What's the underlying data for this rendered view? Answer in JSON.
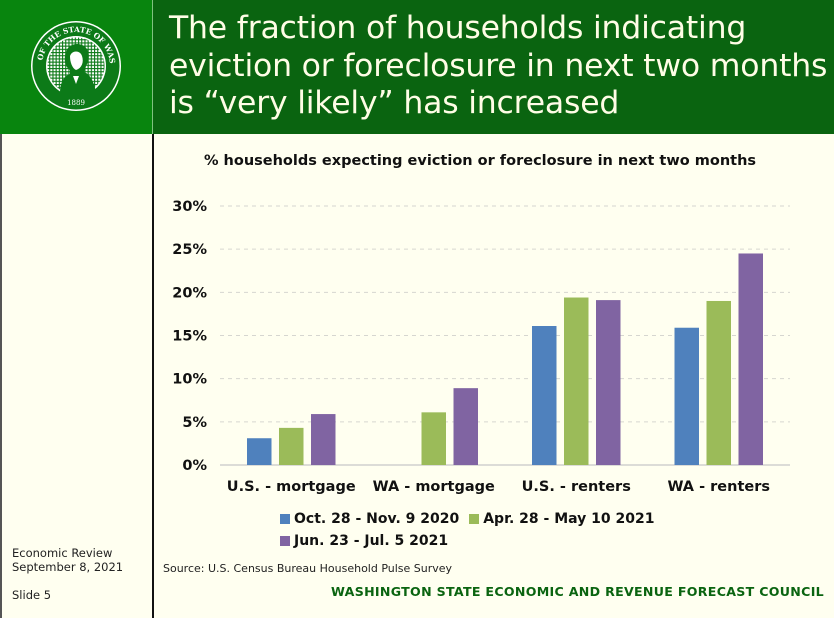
{
  "slide": {
    "title": "The fraction of households indicating eviction or foreclosure in next two months is “very likely” has increased",
    "seal": {
      "icon": "washington-state-seal-icon",
      "text_top": "THE SEAL OF THE STATE OF WASHINGTON",
      "year": "1889"
    },
    "footer": {
      "event": "Economic Review",
      "date": "September 8, 2021",
      "slide_label": "Slide 5",
      "source": "Source: U.S. Census Bureau Household Pulse Survey",
      "organization": "WASHINGTON STATE ECONOMIC AND REVENUE FORECAST COUNCIL"
    },
    "colors": {
      "header_left": "#08850e",
      "header_title": "#0a6410",
      "background": "#fffff0",
      "org_text": "#0a6410"
    }
  },
  "chart_data": {
    "type": "bar",
    "title": "% households expecting eviction or foreclosure in next two months",
    "xlabel": "",
    "ylabel": "",
    "categories": [
      "U.S. - mortgage",
      "WA - mortgage",
      "U.S. - renters",
      "WA - renters"
    ],
    "series": [
      {
        "name": "Oct. 28 - Nov. 9 2020",
        "color": "#4f81bd",
        "values": [
          3.1,
          null,
          16.1,
          15.9
        ]
      },
      {
        "name": "Apr. 28 - May 10 2021",
        "color": "#9bbb59",
        "values": [
          4.3,
          6.1,
          19.4,
          19.0
        ]
      },
      {
        "name": "Jun. 23 - Jul. 5 2021",
        "color": "#8064a2",
        "values": [
          5.9,
          8.9,
          19.1,
          24.5
        ]
      }
    ],
    "ylim": [
      0,
      30
    ],
    "yticks": [
      0,
      5,
      10,
      15,
      20,
      25,
      30
    ],
    "ytick_labels": [
      "0%",
      "5%",
      "10%",
      "15%",
      "20%",
      "25%",
      "30%"
    ],
    "grid": true,
    "legend_position": "bottom"
  }
}
